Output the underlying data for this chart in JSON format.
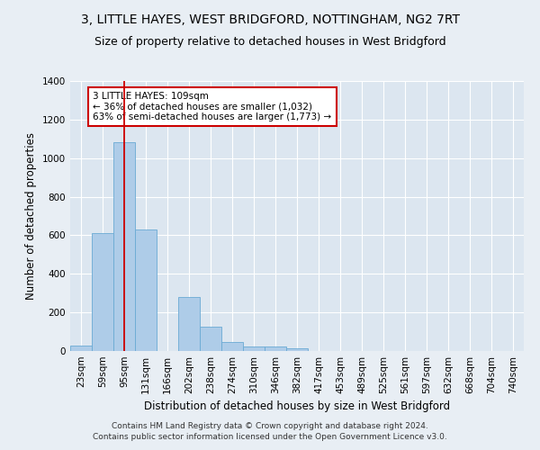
{
  "title": "3, LITTLE HAYES, WEST BRIDGFORD, NOTTINGHAM, NG2 7RT",
  "subtitle": "Size of property relative to detached houses in West Bridgford",
  "xlabel": "Distribution of detached houses by size in West Bridgford",
  "ylabel": "Number of detached properties",
  "bar_labels": [
    "23sqm",
    "59sqm",
    "95sqm",
    "131sqm",
    "166sqm",
    "202sqm",
    "238sqm",
    "274sqm",
    "310sqm",
    "346sqm",
    "382sqm",
    "417sqm",
    "453sqm",
    "489sqm",
    "525sqm",
    "561sqm",
    "597sqm",
    "632sqm",
    "668sqm",
    "704sqm",
    "740sqm"
  ],
  "bar_values": [
    30,
    610,
    1085,
    630,
    0,
    280,
    125,
    45,
    22,
    22,
    13,
    0,
    0,
    0,
    0,
    0,
    0,
    0,
    0,
    0,
    0
  ],
  "bar_color": "#aecce8",
  "bar_edge_color": "#6aaad4",
  "property_bin_index": 2,
  "vline_color": "#cc0000",
  "annotation_text": "3 LITTLE HAYES: 109sqm\n← 36% of detached houses are smaller (1,032)\n63% of semi-detached houses are larger (1,773) →",
  "annotation_box_color": "#ffffff",
  "annotation_box_edge": "#cc0000",
  "ylim": [
    0,
    1400
  ],
  "yticks": [
    0,
    200,
    400,
    600,
    800,
    1000,
    1200,
    1400
  ],
  "background_color": "#e8eef4",
  "plot_bg_color": "#dce6f0",
  "footer_line1": "Contains HM Land Registry data © Crown copyright and database right 2024.",
  "footer_line2": "Contains public sector information licensed under the Open Government Licence v3.0.",
  "title_fontsize": 10,
  "subtitle_fontsize": 9,
  "axis_label_fontsize": 8.5,
  "tick_fontsize": 7.5,
  "annotation_fontsize": 7.5,
  "footer_fontsize": 6.5
}
